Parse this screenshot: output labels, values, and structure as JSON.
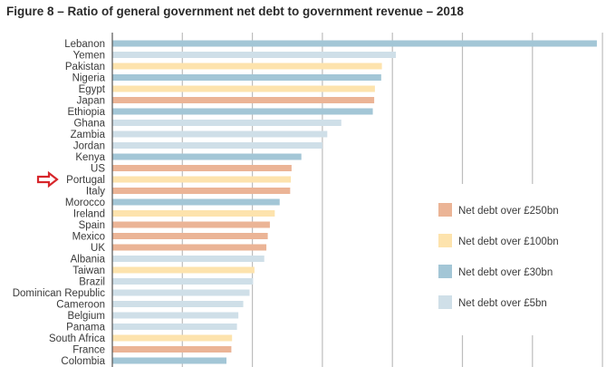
{
  "chart_data": {
    "type": "bar",
    "orientation": "horizontal",
    "title": "Figure 8 – Ratio of general government net debt to government revenue – 2018",
    "xlabel": "",
    "ylabel": "",
    "x_tick_labels_shown": false,
    "value_units": "gridline intervals (no axis tick labels shown)",
    "xlim": [
      0,
      7
    ],
    "grid": true,
    "legend_position": "right",
    "highlighted_category": "Portugal",
    "highlight_marker": "red-arrow",
    "legend": [
      {
        "key": "250",
        "label": "Net debt over £250bn",
        "color": "#ebb496"
      },
      {
        "key": "100",
        "label": "Net debt over £100bn",
        "color": "#fde3ad"
      },
      {
        "key": "30",
        "label": "Net debt over £30bn",
        "color": "#a3c6d6"
      },
      {
        "key": "5",
        "label": "Net debt over £5bn",
        "color": "#cfdfe8"
      }
    ],
    "categories": [
      "Lebanon",
      "Yemen",
      "Pakistan",
      "Nigeria",
      "Egypt",
      "Japan",
      "Ethiopia",
      "Ghana",
      "Zambia",
      "Jordan",
      "Kenya",
      "US",
      "Portugal",
      "Italy",
      "Morocco",
      "Ireland",
      "Spain",
      "Mexico",
      "UK",
      "Albania",
      "Taiwan",
      "Brazil",
      "Dominican Republic",
      "Cameroon",
      "Belgium",
      "Panama",
      "South Africa",
      "France",
      "Colombia"
    ],
    "values": [
      6.92,
      4.05,
      3.85,
      3.84,
      3.75,
      3.74,
      3.72,
      3.27,
      3.07,
      3.0,
      2.7,
      2.56,
      2.55,
      2.54,
      2.39,
      2.32,
      2.25,
      2.22,
      2.2,
      2.17,
      2.03,
      2.01,
      1.96,
      1.87,
      1.8,
      1.78,
      1.71,
      1.7,
      1.63
    ],
    "groups": [
      "30",
      "5",
      "100",
      "30",
      "100",
      "250",
      "30",
      "5",
      "5",
      "5",
      "30",
      "250",
      "100",
      "250",
      "30",
      "100",
      "250",
      "250",
      "250",
      "5",
      "100",
      "5",
      "5",
      "5",
      "5",
      "5",
      "100",
      "250",
      "30"
    ]
  },
  "annotation": {
    "arrow_color": "#d7262b"
  }
}
